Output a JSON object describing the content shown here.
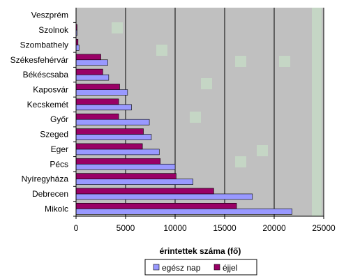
{
  "chart_data": {
    "type": "bar",
    "orientation": "horizontal",
    "title": "",
    "xlabel": "érintettek száma (fő)",
    "ylabel": "",
    "xlim": [
      0,
      25000
    ],
    "xticks": [
      0,
      5000,
      10000,
      15000,
      20000,
      25000
    ],
    "xtick_labels": [
      "0",
      "5000",
      "10000",
      "15000",
      "20000",
      "25000"
    ],
    "grid": "vertical",
    "legend_position": "bottom",
    "categories": [
      "Veszprém",
      "Szolnok",
      "Szombathely",
      "Székesfehérvár",
      "Békéscsaba",
      "Kaposvár",
      "Kecskemét",
      "Győr",
      "Szeged",
      "Eger",
      "Pécs",
      "Nyíregyháza",
      "Debrecen",
      "Mikolc"
    ],
    "series": [
      {
        "name": "egész nap",
        "color": "#9999ff",
        "values": [
          0,
          100,
          300,
          3200,
          3300,
          5200,
          5600,
          7400,
          7600,
          8400,
          10000,
          11800,
          17800,
          21800
        ]
      },
      {
        "name": "éjjel",
        "color": "#990066",
        "values": [
          0,
          100,
          200,
          2500,
          2700,
          4400,
          4300,
          4300,
          6800,
          6700,
          8500,
          10100,
          13900,
          16200
        ]
      }
    ],
    "plot_background": "#c0c0c0",
    "gridline_color": "#000000"
  }
}
